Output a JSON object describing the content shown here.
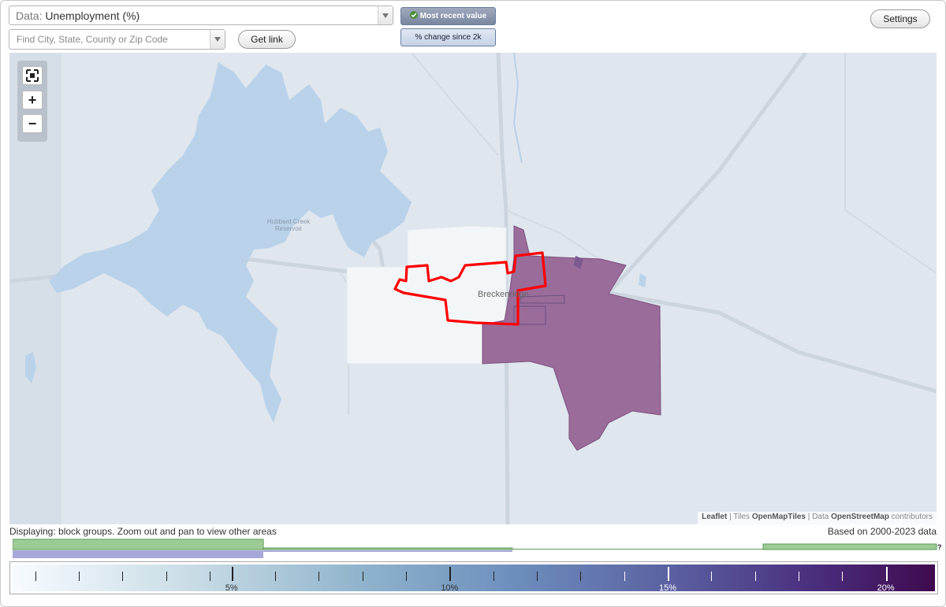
{
  "controls": {
    "data_prefix": "Data:",
    "data_value": "Unemployment (%)",
    "search_placeholder": "Find City, State, County or Zip Code",
    "get_link": "Get link",
    "most_recent": "Most recent value",
    "pct_change": "% change since 2k",
    "settings": "Settings"
  },
  "map": {
    "city_label": "Breckenridge",
    "reservoir_label": "Hubbard Creek Reservoir",
    "attribution": {
      "leaflet": "Leaflet",
      "tiles_prefix": "| Tiles",
      "tiles": "OpenMapTiles",
      "data_prefix": "| Data",
      "data": "OpenStreetMap",
      "contributors": "contributors"
    },
    "colors": {
      "water": "#b8d0e8",
      "land": "#dfe6ee",
      "selected_outline": "#ff0000",
      "high_value_fill": "#9b6b9a",
      "low_value_fill": "#f3f6f8"
    },
    "zoom_icons": [
      "fullscreen-icon",
      "plus-icon",
      "minus-icon"
    ]
  },
  "footer": {
    "displaying": "Displaying: block groups. Zoom out and pan to view other areas",
    "based_on": "Based on 2000-2023 data",
    "hist_question": "?"
  },
  "legend": {
    "min": 0,
    "max": 21,
    "labels": [
      {
        "value": 5,
        "text": "5%"
      },
      {
        "value": 10,
        "text": "10%"
      },
      {
        "value": 15,
        "text": "15%"
      },
      {
        "value": 20,
        "text": "20%"
      }
    ],
    "minor_ticks": [
      0.5,
      1.5,
      2.5,
      3.5,
      4.5,
      6,
      7,
      8,
      9,
      11,
      12,
      13,
      14,
      16,
      17,
      18,
      19
    ]
  }
}
